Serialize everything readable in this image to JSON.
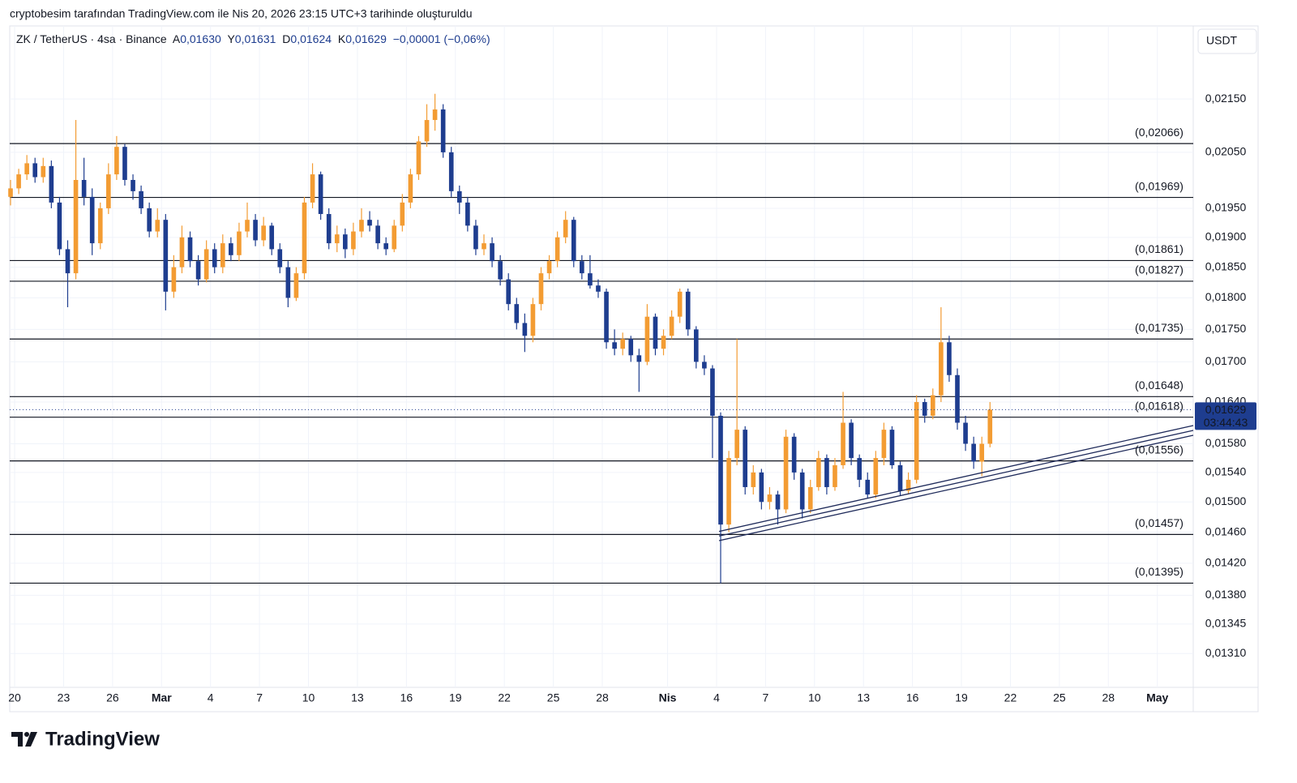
{
  "header": {
    "caption": "cryptobesim tarafından TradingView.com ile Nis 20, 2026 23:15 UTC+3 tarihinde oluşturuldu",
    "symbol": "ZK / TetherUS · 4sa · Binance",
    "ohlc": [
      {
        "key": "A",
        "value": "0,01630"
      },
      {
        "key": "Y",
        "value": "0,01631"
      },
      {
        "key": "D",
        "value": "0,01624"
      },
      {
        "key": "K",
        "value": "0,01629"
      }
    ],
    "change": "−0,00001 (−0,06%)",
    "currency": "USDT",
    "brand": "TradingView"
  },
  "chart_data": {
    "type": "candlestick",
    "log": true,
    "grid": true,
    "up_color": "#f39c33",
    "down_color": "#1e3d8f",
    "xlim": [
      -0.3,
      72.2
    ],
    "ylim": [
      0.01271,
      0.02295
    ],
    "xticks": [
      {
        "value": 0,
        "label": "20"
      },
      {
        "value": 3,
        "label": "23"
      },
      {
        "value": 6,
        "label": "26"
      },
      {
        "value": 9,
        "label": "Mar"
      },
      {
        "value": 12,
        "label": "4"
      },
      {
        "value": 15,
        "label": "7"
      },
      {
        "value": 18,
        "label": "10"
      },
      {
        "value": 21,
        "label": "13"
      },
      {
        "value": 24,
        "label": "16"
      },
      {
        "value": 27,
        "label": "19"
      },
      {
        "value": 30,
        "label": "22"
      },
      {
        "value": 33,
        "label": "25"
      },
      {
        "value": 36,
        "label": "28"
      },
      {
        "value": 40,
        "label": "Nis"
      },
      {
        "value": 43,
        "label": "4"
      },
      {
        "value": 46,
        "label": "7"
      },
      {
        "value": 49,
        "label": "10"
      },
      {
        "value": 52,
        "label": "13"
      },
      {
        "value": 55,
        "label": "16"
      },
      {
        "value": 58,
        "label": "19"
      },
      {
        "value": 61,
        "label": "22"
      },
      {
        "value": 64,
        "label": "25"
      },
      {
        "value": 67,
        "label": "28"
      },
      {
        "value": 70,
        "label": "May"
      }
    ],
    "yticks": [
      {
        "value": 0.0215,
        "label": "0,02150"
      },
      {
        "value": 0.0205,
        "label": "0,02050"
      },
      {
        "value": 0.0195,
        "label": "0,01950"
      },
      {
        "value": 0.019,
        "label": "0,01900"
      },
      {
        "value": 0.0185,
        "label": "0,01850"
      },
      {
        "value": 0.018,
        "label": "0,01800"
      },
      {
        "value": 0.0175,
        "label": "0,01750"
      },
      {
        "value": 0.017,
        "label": "0,01700"
      },
      {
        "value": 0.0164,
        "label": "0,01640"
      },
      {
        "value": 0.0158,
        "label": "0,01580"
      },
      {
        "value": 0.0154,
        "label": "0,01540"
      },
      {
        "value": 0.015,
        "label": "0,01500"
      },
      {
        "value": 0.0146,
        "label": "0,01460"
      },
      {
        "value": 0.0142,
        "label": "0,01420"
      },
      {
        "value": 0.0138,
        "label": "0,01380"
      },
      {
        "value": 0.01345,
        "label": "0,01345"
      },
      {
        "value": 0.0131,
        "label": "0,01310"
      }
    ],
    "levels": [
      {
        "value": 0.02066,
        "label": "(0,02066)"
      },
      {
        "value": 0.01969,
        "label": "(0,01969)"
      },
      {
        "value": 0.01861,
        "label": "(0,01861)"
      },
      {
        "value": 0.01827,
        "label": "(0,01827)"
      },
      {
        "value": 0.01735,
        "label": "(0,01735)"
      },
      {
        "value": 0.01648,
        "label": "(0,01648)"
      },
      {
        "value": 0.01618,
        "label": "(0,01618)"
      },
      {
        "value": 0.01556,
        "label": "(0,01556)"
      },
      {
        "value": 0.01457,
        "label": "(0,01457)"
      },
      {
        "value": 0.01395,
        "label": "(0,01395)"
      }
    ],
    "trendlines": [
      {
        "x": [
          43.15,
          72.2
        ],
        "y": [
          0.01461,
          0.01606
        ]
      },
      {
        "x": [
          43.15,
          72.2
        ],
        "y": [
          0.01455,
          0.01599
        ]
      },
      {
        "x": [
          43.15,
          72.2
        ],
        "y": [
          0.01449,
          0.01592
        ]
      }
    ],
    "last_price": {
      "value": 0.01629,
      "label": "0,01629"
    },
    "countdown": "03:44:43",
    "x": [
      -0.25,
      0.25,
      0.75,
      1.25,
      1.75,
      2.25,
      2.75,
      3.25,
      3.75,
      4.25,
      4.75,
      5.25,
      5.75,
      6.25,
      6.75,
      7.25,
      7.75,
      8.25,
      8.75,
      9.25,
      9.75,
      10.25,
      10.75,
      11.25,
      11.75,
      12.25,
      12.75,
      13.25,
      13.75,
      14.25,
      14.75,
      15.25,
      15.75,
      16.25,
      16.75,
      17.25,
      17.75,
      18.25,
      18.75,
      19.25,
      19.75,
      20.25,
      20.75,
      21.25,
      21.75,
      22.25,
      22.75,
      23.25,
      23.75,
      24.25,
      24.75,
      25.25,
      25.75,
      26.25,
      26.75,
      27.25,
      27.75,
      28.25,
      28.75,
      29.25,
      29.75,
      30.25,
      30.75,
      31.25,
      31.75,
      32.25,
      32.75,
      33.25,
      33.75,
      34.25,
      34.75,
      35.25,
      35.75,
      36.25,
      36.75,
      37.25,
      37.75,
      38.25,
      38.75,
      39.25,
      39.75,
      40.25,
      40.75,
      41.25,
      41.75,
      42.25,
      42.75,
      43.25,
      43.75,
      44.25,
      44.75,
      45.25,
      45.75,
      46.25,
      46.75,
      47.25,
      47.75,
      48.25,
      48.75,
      49.25,
      49.75,
      50.25,
      50.75,
      51.25,
      51.75,
      52.25,
      52.75,
      53.25,
      53.75,
      54.25,
      54.75,
      55.25,
      55.75,
      56.25,
      56.75,
      57.25,
      57.75,
      58.25,
      58.75,
      59.25,
      59.75
    ],
    "ohlc": [
      [
        0.0197,
        0.02,
        0.01955,
        0.01985
      ],
      [
        0.01985,
        0.0202,
        0.01975,
        0.0201
      ],
      [
        0.0201,
        0.02045,
        0.02,
        0.0203
      ],
      [
        0.0203,
        0.0204,
        0.01995,
        0.02005
      ],
      [
        0.02005,
        0.0204,
        0.01995,
        0.02025
      ],
      [
        0.02025,
        0.02035,
        0.0195,
        0.0196
      ],
      [
        0.0196,
        0.0197,
        0.0187,
        0.0188
      ],
      [
        0.0188,
        0.01895,
        0.01785,
        0.0184
      ],
      [
        0.0184,
        0.0211,
        0.0183,
        0.02
      ],
      [
        0.02,
        0.0204,
        0.01955,
        0.0197
      ],
      [
        0.0197,
        0.01985,
        0.0187,
        0.0189
      ],
      [
        0.0189,
        0.0196,
        0.0188,
        0.0195
      ],
      [
        0.0195,
        0.0203,
        0.0194,
        0.0201
      ],
      [
        0.0201,
        0.0208,
        0.02,
        0.0206
      ],
      [
        0.0206,
        0.02065,
        0.0199,
        0.02
      ],
      [
        0.02,
        0.0201,
        0.01965,
        0.0198
      ],
      [
        0.0198,
        0.0199,
        0.0194,
        0.0195
      ],
      [
        0.0195,
        0.0196,
        0.019,
        0.0191
      ],
      [
        0.0191,
        0.0195,
        0.019,
        0.0193
      ],
      [
        0.0193,
        0.0194,
        0.0178,
        0.0181
      ],
      [
        0.0181,
        0.0187,
        0.018,
        0.0185
      ],
      [
        0.0185,
        0.0192,
        0.0184,
        0.019
      ],
      [
        0.019,
        0.0191,
        0.0185,
        0.0186
      ],
      [
        0.0186,
        0.0187,
        0.0182,
        0.0183
      ],
      [
        0.0183,
        0.01895,
        0.01825,
        0.0188
      ],
      [
        0.0188,
        0.0189,
        0.0184,
        0.0185
      ],
      [
        0.0185,
        0.01905,
        0.0184,
        0.0189
      ],
      [
        0.0189,
        0.019,
        0.0186,
        0.0187
      ],
      [
        0.0187,
        0.01925,
        0.0186,
        0.0191
      ],
      [
        0.0191,
        0.0196,
        0.019,
        0.0193
      ],
      [
        0.0193,
        0.0194,
        0.01885,
        0.01895
      ],
      [
        0.01895,
        0.01935,
        0.01885,
        0.0192
      ],
      [
        0.0192,
        0.01925,
        0.0187,
        0.0188
      ],
      [
        0.0188,
        0.0189,
        0.0184,
        0.0185
      ],
      [
        0.0185,
        0.0186,
        0.01785,
        0.018
      ],
      [
        0.018,
        0.0185,
        0.01795,
        0.0184
      ],
      [
        0.0184,
        0.0197,
        0.0183,
        0.0196
      ],
      [
        0.0196,
        0.0203,
        0.0195,
        0.0201
      ],
      [
        0.0201,
        0.02015,
        0.0193,
        0.0194
      ],
      [
        0.0194,
        0.0195,
        0.0188,
        0.0189
      ],
      [
        0.0189,
        0.0192,
        0.01875,
        0.01905
      ],
      [
        0.01905,
        0.01915,
        0.01865,
        0.0188
      ],
      [
        0.0188,
        0.01925,
        0.0187,
        0.0191
      ],
      [
        0.0191,
        0.0195,
        0.019,
        0.0193
      ],
      [
        0.0193,
        0.01945,
        0.0191,
        0.0192
      ],
      [
        0.0192,
        0.0193,
        0.0188,
        0.0189
      ],
      [
        0.0189,
        0.019,
        0.0187,
        0.0188
      ],
      [
        0.0188,
        0.0193,
        0.01875,
        0.0192
      ],
      [
        0.0192,
        0.01975,
        0.0191,
        0.0196
      ],
      [
        0.0196,
        0.0202,
        0.0195,
        0.0201
      ],
      [
        0.0201,
        0.0208,
        0.02,
        0.0207
      ],
      [
        0.0207,
        0.0214,
        0.0206,
        0.0211
      ],
      [
        0.0211,
        0.0216,
        0.0209,
        0.0213
      ],
      [
        0.0213,
        0.0214,
        0.0204,
        0.0205
      ],
      [
        0.0205,
        0.0206,
        0.0197,
        0.0198
      ],
      [
        0.0198,
        0.0199,
        0.0194,
        0.0196
      ],
      [
        0.0196,
        0.0197,
        0.0191,
        0.0192
      ],
      [
        0.0192,
        0.0193,
        0.0187,
        0.0188
      ],
      [
        0.0188,
        0.01905,
        0.0187,
        0.0189
      ],
      [
        0.0189,
        0.019,
        0.0185,
        0.0186
      ],
      [
        0.0186,
        0.0187,
        0.0182,
        0.0183
      ],
      [
        0.0183,
        0.0184,
        0.0178,
        0.0179
      ],
      [
        0.0179,
        0.018,
        0.0175,
        0.0176
      ],
      [
        0.0176,
        0.01775,
        0.01715,
        0.0174
      ],
      [
        0.0174,
        0.018,
        0.0173,
        0.0179
      ],
      [
        0.0179,
        0.0185,
        0.0178,
        0.0184
      ],
      [
        0.0184,
        0.0187,
        0.0183,
        0.0186
      ],
      [
        0.0186,
        0.0191,
        0.0185,
        0.019
      ],
      [
        0.019,
        0.01945,
        0.0189,
        0.0193
      ],
      [
        0.0193,
        0.01935,
        0.0185,
        0.0186
      ],
      [
        0.0186,
        0.0187,
        0.0183,
        0.0184
      ],
      [
        0.0184,
        0.0187,
        0.01815,
        0.0182
      ],
      [
        0.0182,
        0.0183,
        0.018,
        0.0181
      ],
      [
        0.0181,
        0.01815,
        0.0172,
        0.0173
      ],
      [
        0.0173,
        0.0175,
        0.0171,
        0.0172
      ],
      [
        0.0172,
        0.01745,
        0.0171,
        0.01735
      ],
      [
        0.01735,
        0.0174,
        0.017,
        0.0171
      ],
      [
        0.0171,
        0.0172,
        0.01655,
        0.017
      ],
      [
        0.017,
        0.0179,
        0.01695,
        0.0177
      ],
      [
        0.0177,
        0.01775,
        0.0171,
        0.0172
      ],
      [
        0.0172,
        0.0175,
        0.0171,
        0.0174
      ],
      [
        0.0174,
        0.0178,
        0.01735,
        0.0177
      ],
      [
        0.0177,
        0.01815,
        0.0176,
        0.0181
      ],
      [
        0.0181,
        0.01815,
        0.0174,
        0.0175
      ],
      [
        0.0175,
        0.01755,
        0.0169,
        0.017
      ],
      [
        0.017,
        0.0171,
        0.0168,
        0.0169
      ],
      [
        0.0169,
        0.01695,
        0.0156,
        0.0162
      ],
      [
        0.0162,
        0.01625,
        0.01395,
        0.0147
      ],
      [
        0.0147,
        0.0157,
        0.0146,
        0.0156
      ],
      [
        0.0156,
        0.01735,
        0.0155,
        0.016
      ],
      [
        0.016,
        0.01605,
        0.0151,
        0.0152
      ],
      [
        0.0152,
        0.0155,
        0.0151,
        0.0154
      ],
      [
        0.0154,
        0.01545,
        0.0149,
        0.015
      ],
      [
        0.015,
        0.0152,
        0.0149,
        0.0151
      ],
      [
        0.0151,
        0.01515,
        0.0147,
        0.0149
      ],
      [
        0.0149,
        0.016,
        0.01485,
        0.0159
      ],
      [
        0.0159,
        0.01595,
        0.0153,
        0.0154
      ],
      [
        0.0154,
        0.01545,
        0.01478,
        0.0149
      ],
      [
        0.0149,
        0.0153,
        0.01485,
        0.0152
      ],
      [
        0.0152,
        0.0157,
        0.01515,
        0.0156
      ],
      [
        0.0156,
        0.01565,
        0.0151,
        0.0152
      ],
      [
        0.0152,
        0.0156,
        0.01515,
        0.0155
      ],
      [
        0.0155,
        0.01655,
        0.01545,
        0.0161
      ],
      [
        0.0161,
        0.01615,
        0.0155,
        0.0156
      ],
      [
        0.0156,
        0.01565,
        0.0152,
        0.0153
      ],
      [
        0.0153,
        0.0154,
        0.01505,
        0.0151
      ],
      [
        0.0151,
        0.0157,
        0.01505,
        0.0156
      ],
      [
        0.0156,
        0.0161,
        0.0155,
        0.016
      ],
      [
        0.016,
        0.01605,
        0.01545,
        0.0155
      ],
      [
        0.0155,
        0.01555,
        0.01508,
        0.01515
      ],
      [
        0.01515,
        0.0154,
        0.0151,
        0.0153
      ],
      [
        0.0153,
        0.0165,
        0.01525,
        0.0164
      ],
      [
        0.0164,
        0.01645,
        0.0161,
        0.0162
      ],
      [
        0.0162,
        0.0166,
        0.01615,
        0.0165
      ],
      [
        0.0165,
        0.01785,
        0.0164,
        0.0173
      ],
      [
        0.0173,
        0.0174,
        0.0167,
        0.0168
      ],
      [
        0.0168,
        0.0169,
        0.016,
        0.0161
      ],
      [
        0.0161,
        0.0162,
        0.0157,
        0.0158
      ],
      [
        0.0158,
        0.0159,
        0.01545,
        0.01555
      ],
      [
        0.01555,
        0.0159,
        0.01535,
        0.0158
      ],
      [
        0.0158,
        0.0164,
        0.01575,
        0.01629
      ]
    ]
  }
}
